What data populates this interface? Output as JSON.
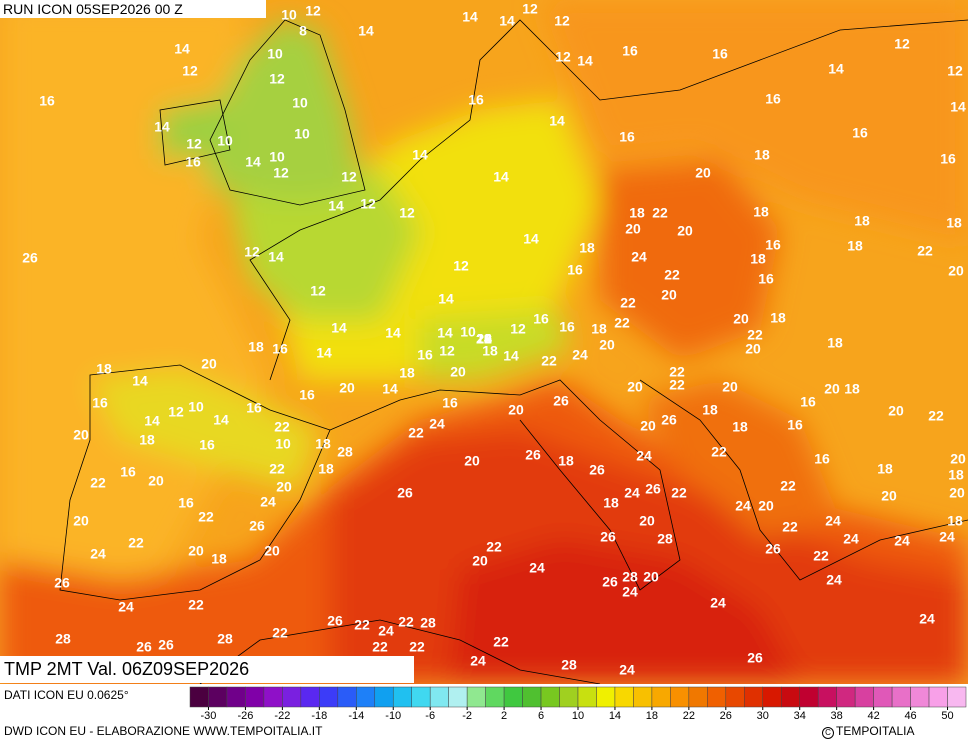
{
  "header": {
    "run": "RUN ICON 05SEP2026 00 Z"
  },
  "map": {
    "title": "TMP 2MT Val. 06Z09SEP2026",
    "labels": [
      10,
      12,
      14,
      14,
      12,
      12,
      8,
      14,
      14,
      10,
      12,
      14,
      16,
      16,
      12,
      12,
      12,
      14,
      12,
      16,
      10,
      16,
      16,
      14,
      14,
      14,
      16,
      16,
      10,
      12,
      10,
      10,
      14,
      14,
      18,
      16,
      16,
      12,
      12,
      20,
      14,
      14,
      12,
      18,
      22,
      18,
      12,
      20,
      18,
      20,
      18,
      14,
      16,
      18,
      18,
      12,
      14,
      24,
      18,
      22,
      20,
      12,
      16,
      22,
      16,
      12,
      20,
      14,
      22,
      14,
      16,
      14,
      10,
      14,
      12,
      16,
      18,
      22,
      20,
      18,
      22,
      18,
      16,
      14,
      16,
      12,
      18,
      14,
      22,
      24,
      20,
      20,
      18,
      20,
      18,
      14,
      18,
      20,
      22,
      22,
      20,
      20,
      20,
      18,
      16,
      20,
      14,
      16,
      16,
      10,
      12,
      14,
      14,
      16,
      20,
      26,
      18,
      16,
      20,
      22,
      20,
      18,
      22,
      24,
      22,
      26,
      20,
      18,
      16,
      16,
      10,
      18,
      28,
      24,
      22,
      18,
      26,
      26,
      20,
      16,
      20,
      22,
      18,
      16,
      20,
      18,
      18,
      20,
      22,
      24,
      26,
      22,
      26,
      22,
      20,
      20,
      16,
      24,
      22,
      18,
      24,
      20,
      26,
      20,
      24,
      18,
      22,
      20,
      24,
      26,
      28,
      24,
      24,
      22,
      20,
      18,
      20,
      22,
      26,
      22,
      24,
      20,
      24,
      24,
      26,
      28,
      20,
      26,
      24,
      24,
      22,
      24,
      26,
      28,
      28,
      22,
      26,
      22,
      24,
      22,
      28,
      24,
      26,
      26,
      22,
      22,
      22,
      24,
      28,
      24,
      26,
      24,
      22,
      22,
      22,
      20,
      24,
      26,
      28,
      20,
      18,
      22,
      20,
      28,
      28,
      28
    ]
  },
  "colorbar": {
    "lim": [
      -32,
      52
    ],
    "ticks": [
      -30,
      -26,
      -22,
      -18,
      -14,
      -10,
      -6,
      -2,
      2,
      6,
      10,
      14,
      18,
      22,
      26,
      30,
      34,
      38,
      42,
      46,
      50
    ],
    "colors": [
      "#4b0040",
      "#5c0060",
      "#70008a",
      "#8000a8",
      "#8f10c8",
      "#7a20e0",
      "#5a28f0",
      "#3c3cf8",
      "#2a5cf8",
      "#1e80f8",
      "#10a0f0",
      "#20c0f0",
      "#40d8f0",
      "#80e8f0",
      "#b0f0f0",
      "#90e890",
      "#60d860",
      "#40c840",
      "#50c030",
      "#78c820",
      "#a0d020",
      "#c8e010",
      "#f0f000",
      "#f8d800",
      "#f8c000",
      "#f8a800",
      "#f89000",
      "#f07800",
      "#f06000",
      "#e84800",
      "#e03000",
      "#d81800",
      "#c80a10",
      "#c00030",
      "#c81060",
      "#d02880",
      "#d840a0",
      "#e058b8",
      "#e870c8",
      "#f088d8",
      "#f8a0e8",
      "#f8b8f0"
    ]
  },
  "footer": {
    "source": "DATI ICON EU 0.0625°",
    "credit": "DWD ICON EU - ELABORAZIONE WWW.TEMPOITALIA.IT",
    "brand": "TEMPOITALIA"
  }
}
